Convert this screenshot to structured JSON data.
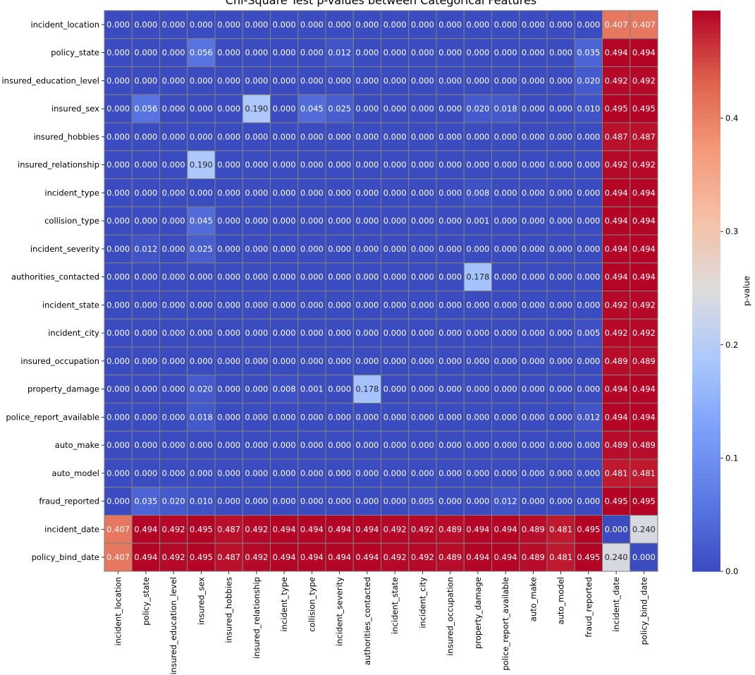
{
  "chart_data": {
    "type": "heatmap",
    "title": "Chi-Square Test p-values between Categorical Features",
    "colormap": "coolwarm",
    "vmin": 0.0,
    "vmax": 0.495,
    "colorbar": {
      "label": "p-value",
      "ticks": [
        0.0,
        0.1,
        0.2,
        0.3,
        0.4
      ],
      "tick_labels": [
        "0.0",
        "0.1",
        "0.2",
        "0.3",
        "0.4"
      ]
    },
    "cell_border_color": "#808080",
    "labels": [
      "incident_location",
      "policy_state",
      "insured_education_level",
      "insured_sex",
      "insured_hobbies",
      "insured_relationship",
      "incident_type",
      "collision_type",
      "incident_severity",
      "authorities_contacted",
      "incident_state",
      "incident_city",
      "insured_occupation",
      "property_damage",
      "police_report_available",
      "auto_make",
      "auto_model",
      "fraud_reported",
      "incident_date",
      "policy_bind_date"
    ],
    "matrix": [
      [
        0,
        0,
        0,
        0,
        0,
        0,
        0,
        0,
        0,
        0,
        0,
        0,
        0,
        0,
        0,
        0,
        0,
        0,
        0.407,
        0.407
      ],
      [
        0,
        0,
        0,
        0.056,
        0,
        0,
        0,
        0,
        0.012,
        0,
        0,
        0,
        0,
        0,
        0,
        0,
        0,
        0.035,
        0.494,
        0.494
      ],
      [
        0,
        0,
        0,
        0,
        0,
        0,
        0,
        0,
        0,
        0,
        0,
        0,
        0,
        0,
        0,
        0,
        0,
        0.02,
        0.492,
        0.492
      ],
      [
        0,
        0.056,
        0,
        0,
        0,
        0.19,
        0,
        0.045,
        0.025,
        0,
        0,
        0,
        0,
        0.02,
        0.018,
        0,
        0,
        0.01,
        0.495,
        0.495
      ],
      [
        0,
        0,
        0,
        0,
        0,
        0,
        0,
        0,
        0,
        0,
        0,
        0,
        0,
        0,
        0,
        0,
        0,
        0,
        0.487,
        0.487
      ],
      [
        0,
        0,
        0,
        0.19,
        0,
        0,
        0,
        0,
        0,
        0,
        0,
        0,
        0,
        0,
        0,
        0,
        0,
        0,
        0.492,
        0.492
      ],
      [
        0,
        0,
        0,
        0,
        0,
        0,
        0,
        0,
        0,
        0,
        0,
        0,
        0,
        0.008,
        0,
        0,
        0,
        0,
        0.494,
        0.494
      ],
      [
        0,
        0,
        0,
        0.045,
        0,
        0,
        0,
        0,
        0,
        0,
        0,
        0,
        0,
        0.001,
        0,
        0,
        0,
        0,
        0.494,
        0.494
      ],
      [
        0,
        0.012,
        0,
        0.025,
        0,
        0,
        0,
        0,
        0,
        0,
        0,
        0,
        0,
        0,
        0,
        0,
        0,
        0,
        0.494,
        0.494
      ],
      [
        0,
        0,
        0,
        0,
        0,
        0,
        0,
        0,
        0,
        0,
        0,
        0,
        0,
        0.178,
        0,
        0,
        0,
        0,
        0.494,
        0.494
      ],
      [
        0,
        0,
        0,
        0,
        0,
        0,
        0,
        0,
        0,
        0,
        0,
        0,
        0,
        0,
        0,
        0,
        0,
        0,
        0.492,
        0.492
      ],
      [
        0,
        0,
        0,
        0,
        0,
        0,
        0,
        0,
        0,
        0,
        0,
        0,
        0,
        0,
        0,
        0,
        0,
        0.005,
        0.492,
        0.492
      ],
      [
        0,
        0,
        0,
        0,
        0,
        0,
        0,
        0,
        0,
        0,
        0,
        0,
        0,
        0,
        0,
        0,
        0,
        0,
        0.489,
        0.489
      ],
      [
        0,
        0,
        0,
        0.02,
        0,
        0,
        0.008,
        0.001,
        0,
        0.178,
        0,
        0,
        0,
        0,
        0,
        0,
        0,
        0,
        0.494,
        0.494
      ],
      [
        0,
        0,
        0,
        0.018,
        0,
        0,
        0,
        0,
        0,
        0,
        0,
        0,
        0,
        0,
        0,
        0,
        0,
        0.012,
        0.494,
        0.494
      ],
      [
        0,
        0,
        0,
        0,
        0,
        0,
        0,
        0,
        0,
        0,
        0,
        0,
        0,
        0,
        0,
        0,
        0,
        0,
        0.489,
        0.489
      ],
      [
        0,
        0,
        0,
        0,
        0,
        0,
        0,
        0,
        0,
        0,
        0,
        0,
        0,
        0,
        0,
        0,
        0,
        0,
        0.481,
        0.481
      ],
      [
        0,
        0.035,
        0.02,
        0.01,
        0,
        0,
        0,
        0,
        0,
        0,
        0,
        0.005,
        0,
        0,
        0.012,
        0,
        0,
        0,
        0.495,
        0.495
      ],
      [
        0.407,
        0.494,
        0.492,
        0.495,
        0.487,
        0.492,
        0.494,
        0.494,
        0.494,
        0.494,
        0.492,
        0.492,
        0.489,
        0.494,
        0.494,
        0.489,
        0.481,
        0.495,
        0.0,
        0.24
      ],
      [
        0.407,
        0.494,
        0.492,
        0.495,
        0.487,
        0.492,
        0.494,
        0.494,
        0.494,
        0.494,
        0.492,
        0.492,
        0.489,
        0.494,
        0.494,
        0.489,
        0.481,
        0.495,
        0.24,
        0.0
      ]
    ]
  }
}
